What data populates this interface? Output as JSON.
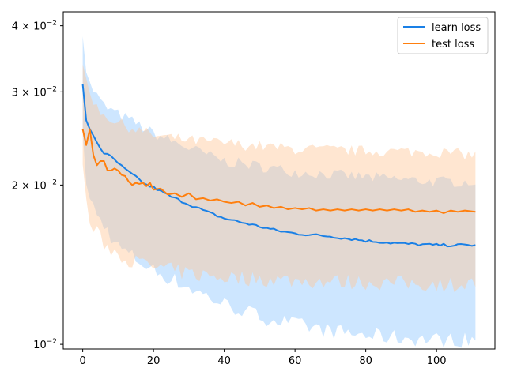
{
  "chart_data": {
    "type": "line",
    "title": "",
    "xlabel": "",
    "ylabel": "",
    "yscale": "log",
    "xlim": [
      -5.5,
      116.5
    ],
    "ylim": [
      0.0098,
      0.0425
    ],
    "x_ticks": [
      0,
      20,
      40,
      60,
      80,
      100
    ],
    "x_tick_labels": [
      "0",
      "20",
      "40",
      "60",
      "80",
      "100"
    ],
    "y_ticks": [
      0.01,
      0.02,
      0.03,
      0.04
    ],
    "y_tick_labels": [
      {
        "base": "10",
        "exp": "−2"
      },
      {
        "coef": "2",
        "base": "10",
        "exp": "−2"
      },
      {
        "coef": "3",
        "base": "10",
        "exp": "−2"
      },
      {
        "coef": "4",
        "base": "10",
        "exp": "−2"
      }
    ],
    "grid": false,
    "legend_position": "top-right",
    "series": [
      {
        "name": "learn loss",
        "color": "#1a80e6",
        "band_color": "#cde6ff",
        "band_alpha": 1.0,
        "anchors": {
          "x": [
            0,
            1,
            2,
            3,
            4,
            5,
            6,
            8,
            10,
            12,
            15,
            18,
            20,
            25,
            30,
            35,
            40,
            45,
            50,
            55,
            60,
            70,
            80,
            90,
            100,
            111
          ],
          "y": [
            0.031,
            0.0265,
            0.0255,
            0.0248,
            0.0241,
            0.0235,
            0.023,
            0.0226,
            0.022,
            0.0214,
            0.0207,
            0.02,
            0.0198,
            0.019,
            0.0184,
            0.0178,
            0.0173,
            0.017,
            0.0167,
            0.0164,
            0.0162,
            0.016,
            0.0157,
            0.0155,
            0.0154,
            0.0154
          ]
        },
        "band_upper_anchors": {
          "x": [
            0,
            1,
            2,
            4,
            6,
            8,
            10,
            15,
            20,
            30,
            40,
            60,
            80,
            100,
            111
          ],
          "y": [
            0.0392,
            0.033,
            0.031,
            0.0295,
            0.0282,
            0.0277,
            0.0272,
            0.0262,
            0.025,
            0.0235,
            0.0222,
            0.0212,
            0.0207,
            0.0203,
            0.0203
          ]
        },
        "band_lower_anchors": {
          "x": [
            0,
            1,
            2,
            4,
            6,
            8,
            10,
            15,
            20,
            30,
            40,
            50,
            60,
            70,
            80,
            90,
            100,
            111
          ],
          "y": [
            0.0245,
            0.0205,
            0.0188,
            0.0175,
            0.0168,
            0.016,
            0.0153,
            0.0145,
            0.0138,
            0.0128,
            0.0119,
            0.0113,
            0.0109,
            0.0106,
            0.0104,
            0.0103,
            0.0102,
            0.0102
          ]
        }
      },
      {
        "name": "test loss",
        "color": "#ff7f0e",
        "band_color": "#ffc89a",
        "band_alpha": 0.45,
        "values": [
          [
            0,
            0.0255
          ],
          [
            1,
            0.0238
          ],
          [
            2,
            0.0255
          ],
          [
            3,
            0.0228
          ],
          [
            4,
            0.0218
          ],
          [
            5,
            0.0222
          ],
          [
            6,
            0.0222
          ],
          [
            7,
            0.0213
          ],
          [
            8,
            0.0213
          ],
          [
            9,
            0.0215
          ],
          [
            10,
            0.0213
          ],
          [
            11,
            0.0209
          ],
          [
            12,
            0.0208
          ],
          [
            13,
            0.0203
          ],
          [
            14,
            0.02
          ],
          [
            15,
            0.0202
          ],
          [
            16,
            0.0201
          ],
          [
            17,
            0.0202
          ],
          [
            18,
            0.0199
          ],
          [
            19,
            0.0202
          ],
          [
            20,
            0.0196
          ],
          [
            22,
            0.0197
          ],
          [
            24,
            0.0192
          ],
          [
            26,
            0.0193
          ],
          [
            28,
            0.019
          ],
          [
            30,
            0.0193
          ],
          [
            32,
            0.0188
          ],
          [
            34,
            0.0189
          ],
          [
            36,
            0.0187
          ],
          [
            38,
            0.0188
          ],
          [
            40,
            0.0186
          ],
          [
            42,
            0.0185
          ],
          [
            44,
            0.0186
          ],
          [
            46,
            0.0183
          ],
          [
            48,
            0.0185
          ],
          [
            50,
            0.0182
          ],
          [
            52,
            0.0183
          ],
          [
            54,
            0.0181
          ],
          [
            56,
            0.0182
          ],
          [
            58,
            0.018
          ],
          [
            60,
            0.0181
          ],
          [
            62,
            0.018
          ],
          [
            64,
            0.0181
          ],
          [
            66,
            0.0179
          ],
          [
            68,
            0.018
          ],
          [
            70,
            0.0179
          ],
          [
            72,
            0.018
          ],
          [
            74,
            0.0179
          ],
          [
            76,
            0.018
          ],
          [
            78,
            0.0179
          ],
          [
            80,
            0.018
          ],
          [
            82,
            0.0179
          ],
          [
            84,
            0.018
          ],
          [
            86,
            0.0179
          ],
          [
            88,
            0.018
          ],
          [
            90,
            0.0179
          ],
          [
            92,
            0.018
          ],
          [
            94,
            0.0178
          ],
          [
            96,
            0.0179
          ],
          [
            98,
            0.0178
          ],
          [
            100,
            0.0179
          ],
          [
            102,
            0.0177
          ],
          [
            104,
            0.0179
          ],
          [
            106,
            0.0178
          ],
          [
            108,
            0.0179
          ],
          [
            111,
            0.0178
          ]
        ],
        "band_upper_anchors": {
          "x": [
            0,
            2,
            4,
            6,
            10,
            20,
            30,
            40,
            60,
            80,
            100,
            111
          ],
          "y": [
            0.033,
            0.03,
            0.028,
            0.0272,
            0.0262,
            0.0248,
            0.0243,
            0.024,
            0.0234,
            0.0232,
            0.0231,
            0.0228
          ]
        },
        "band_lower_anchors": {
          "x": [
            0,
            1,
            2,
            4,
            6,
            10,
            15,
            20,
            30,
            40,
            60,
            80,
            100,
            111
          ],
          "y": [
            0.022,
            0.0185,
            0.017,
            0.0162,
            0.0155,
            0.0148,
            0.0143,
            0.014,
            0.0136,
            0.0134,
            0.0132,
            0.0131,
            0.013,
            0.013
          ]
        }
      }
    ]
  }
}
